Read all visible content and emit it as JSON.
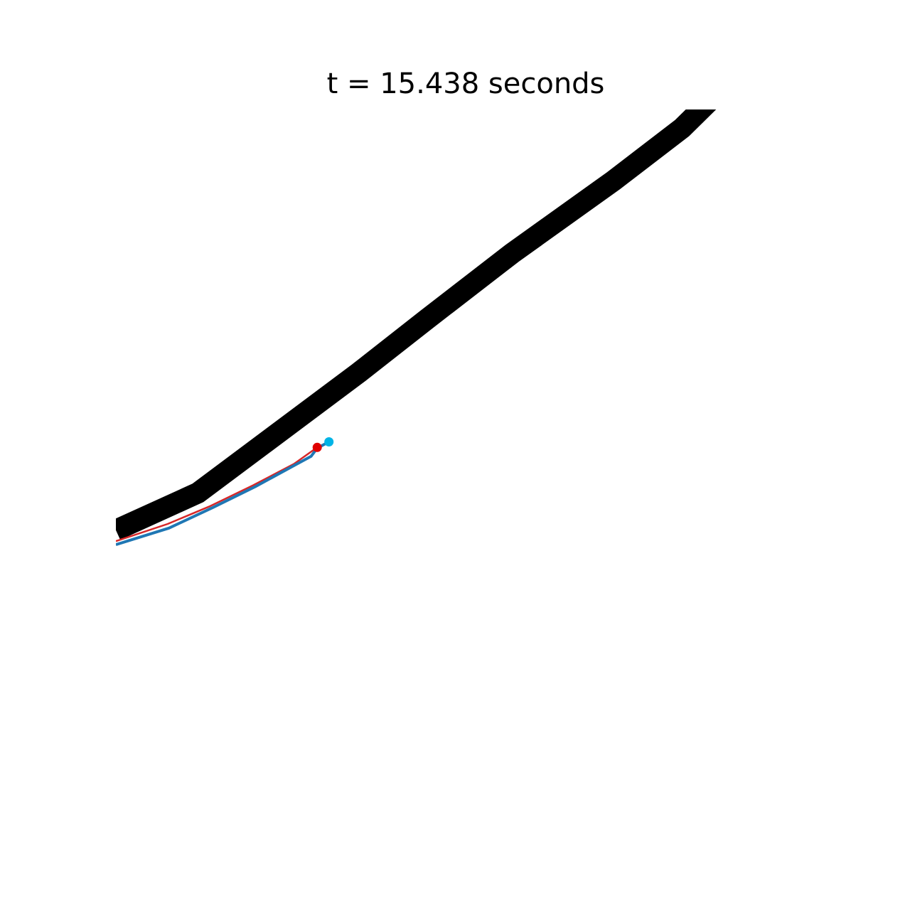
{
  "chart_data": {
    "type": "line",
    "title": "t = 15.438 seconds",
    "xlabel": "",
    "ylabel": "",
    "axes_visible": false,
    "grid": false,
    "xlim": [
      0,
      100
    ],
    "ylim": [
      0,
      100
    ],
    "series": [
      {
        "role": "track",
        "color": "#000000",
        "x": [
          0,
          11.9,
          35.3,
          45.1,
          57.4,
          72.2,
          82.1,
          97.2
        ],
        "y": [
          39.0,
          44.4,
          61.9,
          69.6,
          79.1,
          89.7,
          97.3,
          112.2
        ]
      },
      {
        "role": "trajectory-red",
        "color": "#d62728",
        "x": [
          0,
          7.5,
          13.7,
          19.9,
          25.8,
          29.2
        ],
        "y": [
          37.4,
          39.9,
          42.5,
          45.5,
          48.6,
          51.0
        ]
      },
      {
        "role": "trajectory-blue",
        "color": "#1f77b4",
        "x": [
          0,
          7.7,
          14.1,
          20.2,
          25.9,
          28.3,
          29.2,
          30.9
        ],
        "y": [
          36.9,
          39.3,
          42.3,
          45.3,
          48.4,
          49.7,
          50.9,
          51.8
        ]
      }
    ],
    "markers": [
      {
        "role": "red-position",
        "color": "#e00000",
        "x": 29.2,
        "y": 51.0
      },
      {
        "role": "blue-position",
        "color": "#00b4e6",
        "x": 30.9,
        "y": 51.8
      }
    ]
  }
}
